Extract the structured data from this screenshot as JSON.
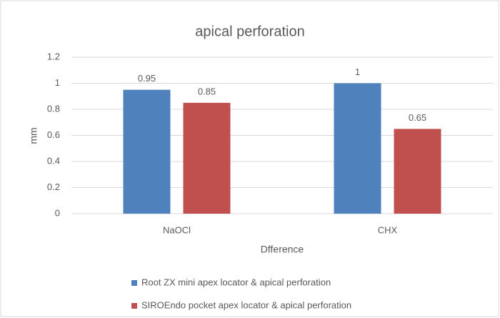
{
  "chart_data": {
    "type": "bar",
    "title": "apical perforation",
    "y_label": "mm",
    "x_label": "Dfference",
    "categories": [
      "NaOCl",
      "CHX"
    ],
    "series": [
      {
        "name": "Root ZX mini apex locator & apical perforation",
        "color": "#4f81bd",
        "values": [
          0.95,
          1
        ]
      },
      {
        "name": "SIROEndo pocket apex locator & apical perforation",
        "color": "#c0504d",
        "values": [
          0.85,
          0.65
        ]
      }
    ],
    "ylim": [
      0,
      1.2
    ],
    "yticks": [
      0,
      0.2,
      0.4,
      0.6,
      0.8,
      1,
      1.2
    ],
    "grid": true,
    "legend": "bottom"
  }
}
